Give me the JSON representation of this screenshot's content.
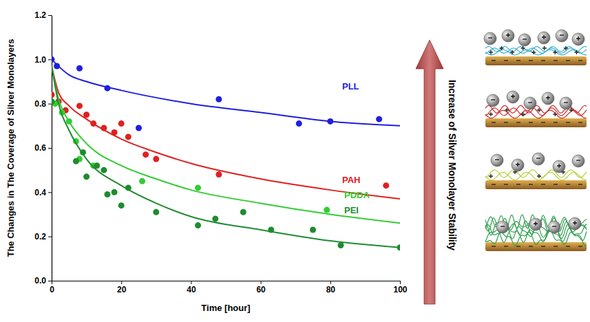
{
  "chart_data": {
    "type": "scatter",
    "x_label": "Time [hour]",
    "y_label": "The Changes in The Coverage of Silver Monolayers",
    "annotation": "Increase of Silver Monolayer Stability",
    "xlim": [
      0,
      100
    ],
    "xticks": [
      0,
      20,
      40,
      60,
      80,
      100
    ],
    "ylim": [
      0,
      1.2
    ],
    "yticks": [
      {
        "value": 0,
        "label": "0.0"
      },
      0.2,
      0.4,
      0.6,
      0.8,
      {
        "value": 1,
        "label": "1.0"
      },
      1.2
    ],
    "series": [
      {
        "name": "PLL",
        "color": "#1f1fe0",
        "x": [
          0,
          1.5,
          8,
          16,
          25,
          48,
          71,
          80,
          94
        ],
        "values": [
          1.0,
          0.97,
          0.96,
          0.87,
          0.69,
          0.82,
          0.71,
          0.72,
          0.73
        ],
        "fit_x": [
          0,
          5,
          10,
          20,
          40,
          60,
          80,
          100
        ],
        "fit_values": [
          1.0,
          0.93,
          0.9,
          0.86,
          0.8,
          0.76,
          0.72,
          0.7
        ]
      },
      {
        "name": "PAH",
        "color": "#e02020",
        "x": [
          0,
          2,
          4,
          8,
          10,
          12,
          15,
          18,
          20,
          22,
          27,
          30,
          48,
          96
        ],
        "values": [
          0.84,
          0.81,
          0.77,
          0.79,
          0.75,
          0.71,
          0.69,
          0.67,
          0.71,
          0.65,
          0.57,
          0.55,
          0.48,
          0.43
        ],
        "fit_x": [
          0,
          2,
          5,
          10,
          20,
          30,
          40,
          60,
          80,
          100
        ],
        "fit_values": [
          0.97,
          0.85,
          0.79,
          0.73,
          0.64,
          0.58,
          0.53,
          0.46,
          0.41,
          0.37
        ]
      },
      {
        "name": "PDDA",
        "color": "#33cc33",
        "x": [
          1,
          3,
          5,
          7,
          8,
          12,
          26,
          42,
          79
        ],
        "values": [
          0.8,
          0.76,
          0.72,
          0.63,
          0.55,
          0.52,
          0.45,
          0.42,
          0.32
        ],
        "fit_x": [
          0,
          2,
          5,
          10,
          20,
          30,
          40,
          60,
          80,
          100
        ],
        "fit_values": [
          0.97,
          0.82,
          0.72,
          0.62,
          0.52,
          0.46,
          0.41,
          0.35,
          0.3,
          0.26
        ]
      },
      {
        "name": "PEI",
        "color": "#1e8c2e",
        "x": [
          0,
          7,
          9,
          10,
          13,
          15,
          16,
          18,
          20,
          22,
          30,
          42,
          47,
          55,
          63,
          75,
          83,
          100
        ],
        "values": [
          0.81,
          0.54,
          0.58,
          0.47,
          0.52,
          0.5,
          0.39,
          0.4,
          0.34,
          0.42,
          0.31,
          0.25,
          0.28,
          0.31,
          0.23,
          0.23,
          0.16,
          0.15
        ],
        "fit_x": [
          0,
          2,
          5,
          10,
          20,
          30,
          40,
          60,
          80,
          100
        ],
        "fit_values": [
          0.97,
          0.8,
          0.68,
          0.55,
          0.43,
          0.35,
          0.29,
          0.23,
          0.18,
          0.15
        ]
      }
    ]
  }
}
